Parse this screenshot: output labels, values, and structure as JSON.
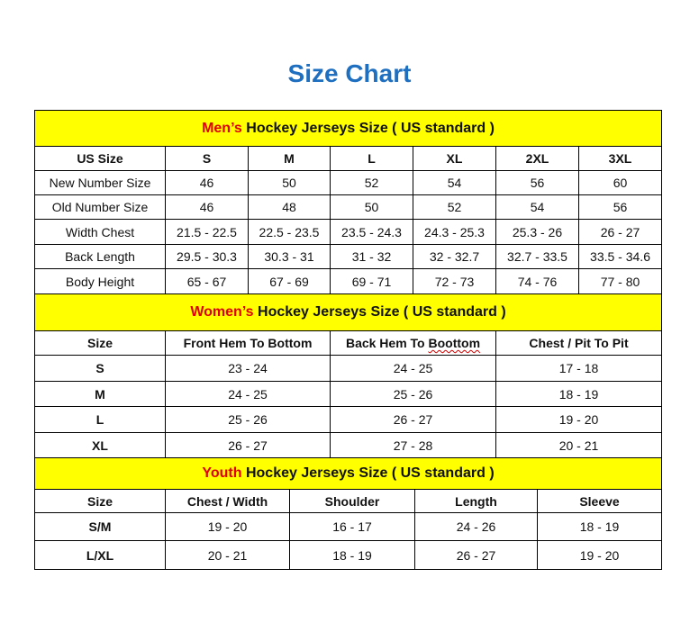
{
  "title": "Size Chart",
  "colors": {
    "band": "#ffff00",
    "highlight": "#e00000",
    "title": "#1f6fc0"
  },
  "men": {
    "highlight": "Men’s",
    "heading": " Hockey Jerseys Size ( US standard )",
    "header": [
      "US Size",
      "S",
      "M",
      "L",
      "XL",
      "2XL",
      "3XL"
    ],
    "rows": [
      [
        "New Number Size",
        "46",
        "50",
        "52",
        "54",
        "56",
        "60"
      ],
      [
        "Old Number Size",
        "46",
        "48",
        "50",
        "52",
        "54",
        "56"
      ],
      [
        "Width Chest",
        "21.5 - 22.5",
        "22.5 - 23.5",
        "23.5 - 24.3",
        "24.3 - 25.3",
        "25.3 - 26",
        "26 - 27"
      ],
      [
        "Back Length",
        "29.5 - 30.3",
        "30.3 - 31",
        "31 - 32",
        "32 - 32.7",
        "32.7 - 33.5",
        "33.5 - 34.6"
      ],
      [
        "Body Height",
        "65 - 67",
        "67 - 69",
        "69 - 71",
        "72 - 73",
        "74 - 76",
        "77 - 80"
      ]
    ]
  },
  "women": {
    "highlight": "Women’s",
    "heading": " Hockey Jerseys Size ( US standard )",
    "header": [
      "Size",
      "Front Hem To Bottom",
      "Back Hem To Boottom",
      "Chest / Pit To Pit"
    ],
    "rows": [
      [
        "S",
        "23 - 24",
        "24 - 25",
        "17 - 18"
      ],
      [
        "M",
        "24 - 25",
        "25 - 26",
        "18 - 19"
      ],
      [
        "L",
        "25 - 26",
        "26 - 27",
        "19 - 20"
      ],
      [
        "XL",
        "26 - 27",
        "27 - 28",
        "20 - 21"
      ]
    ]
  },
  "youth": {
    "highlight": "Youth",
    "heading": " Hockey Jerseys Size ( US standard )",
    "header": [
      "Size",
      "Chest / Width",
      "Shoulder",
      "Length",
      "Sleeve"
    ],
    "rows": [
      [
        "S/M",
        "19 - 20",
        "16 - 17",
        "24 - 26",
        "18 - 19"
      ],
      [
        "L/XL",
        "20 - 21",
        "18 - 19",
        "26 - 27",
        "19 - 20"
      ]
    ]
  }
}
